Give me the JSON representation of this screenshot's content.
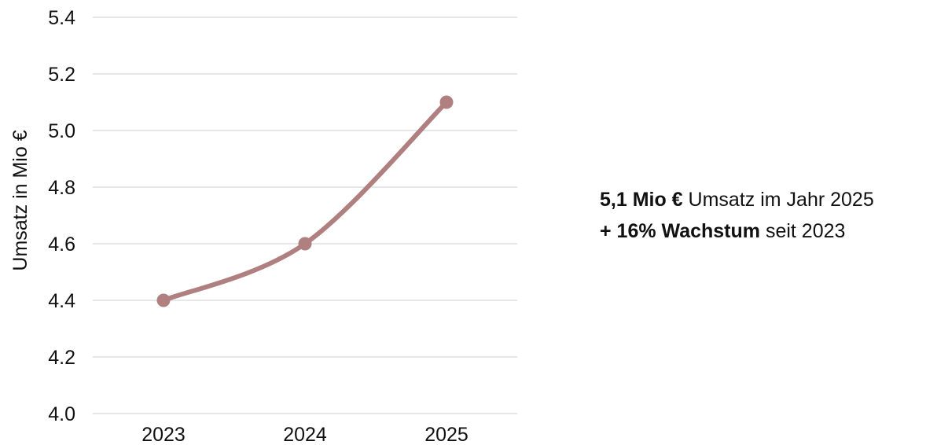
{
  "chart_data": {
    "type": "line",
    "categories": [
      "2023",
      "2024",
      "2025"
    ],
    "series": [
      {
        "values": [
          4.4,
          4.6,
          5.1
        ],
        "color": "#b07f7f"
      }
    ],
    "xlabel": "",
    "ylabel": "Umsatz in Mio €",
    "ylim": [
      4.0,
      5.4
    ],
    "yticks": [
      4.0,
      4.2,
      4.4,
      4.6,
      4.8,
      5.0,
      5.2,
      5.4
    ],
    "ytick_labels": [
      "4.0",
      "4.2",
      "4.4",
      "4.6",
      "4.8",
      "5.0",
      "5.2",
      "5.4"
    ],
    "grid": true,
    "smooth": true
  },
  "annotations": [
    {
      "bold": "5,1 Mio €",
      "text": " Umsatz im Jahr 2025"
    },
    {
      "bold": "+ 16% Wachstum",
      "text": " seit 2023"
    }
  ]
}
